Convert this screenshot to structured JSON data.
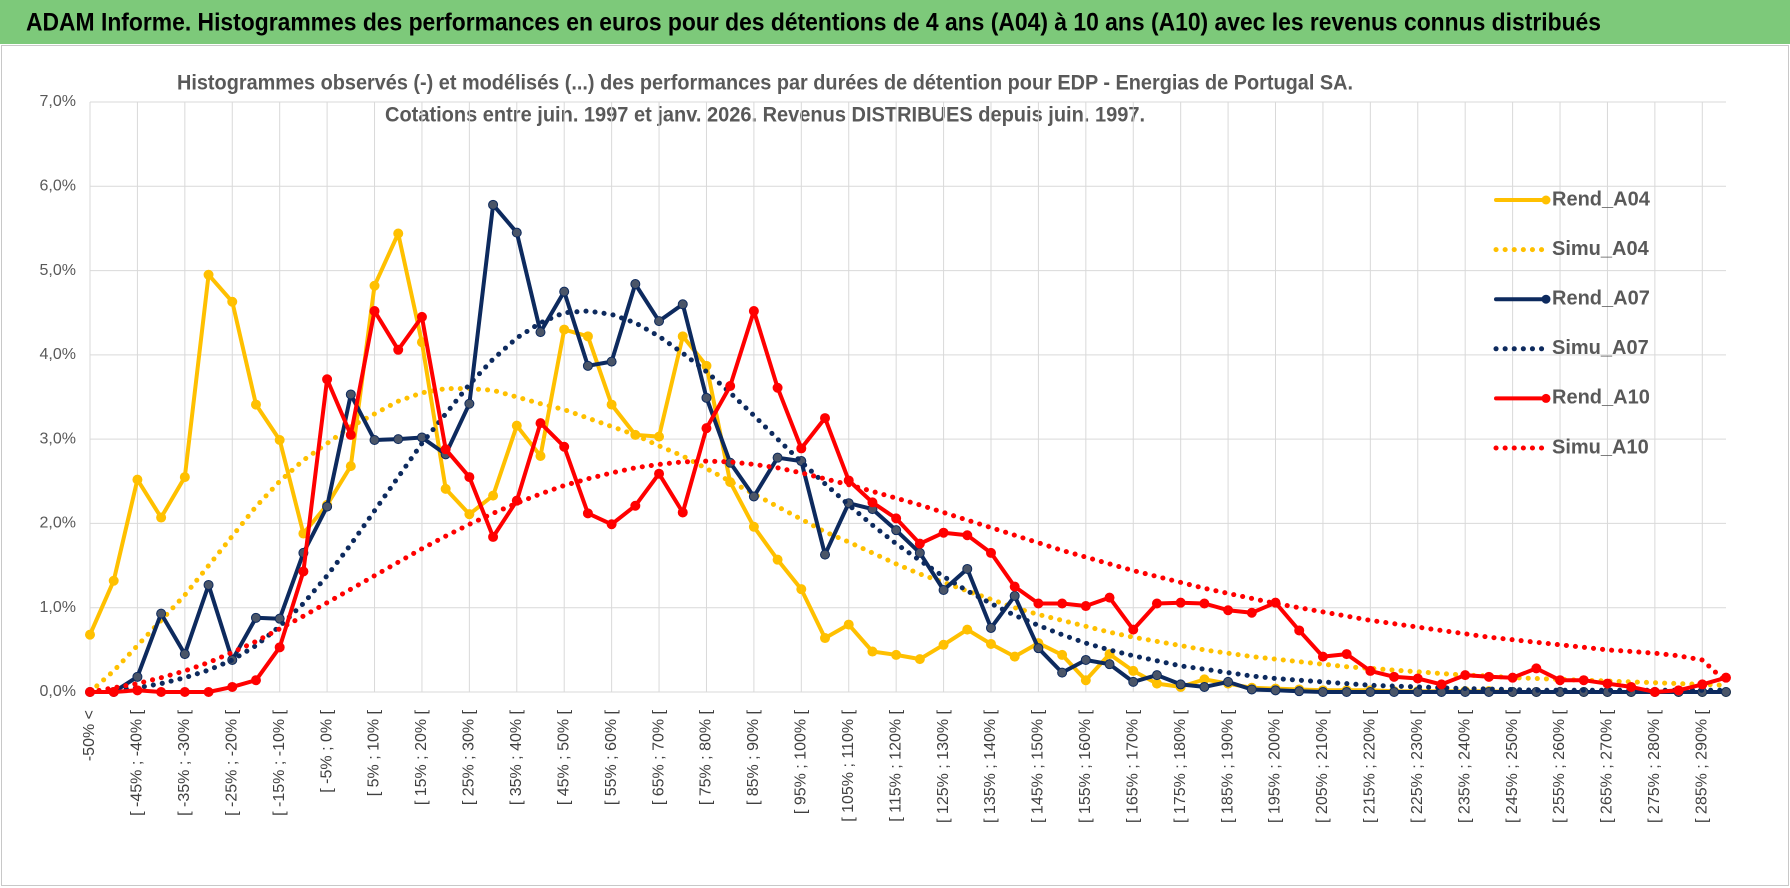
{
  "header": {
    "title": "ADAM Informe. Histogrammes des performances en euros pour des détentions de 4 ans (A04) à 10 ans (A10) avec les revenus connus distribués"
  },
  "chart_data": {
    "type": "line",
    "title": [
      "Histogrammes observés (-) et modélisés (...) des performances par durées de détention pour EDP - Energias de Portugal SA.",
      "Cotations entre juin. 1997 et janv. 2026. Revenus DISTRIBUES depuis juin. 1997."
    ],
    "categories": [
      "-50% <",
      null,
      "[ -45% ; -40% [",
      null,
      "[ -35% ; -30% [",
      null,
      "[ -25% ; -20% [",
      null,
      "[ -15% ; -10% [",
      null,
      "[ -5% ; 0% [",
      null,
      "[ 5% ; 10% [",
      null,
      "[ 15% ; 20% [",
      null,
      "[ 25% ; 30% [",
      null,
      "[ 35% ; 40% [",
      null,
      "[ 45% ; 50% [",
      null,
      "[ 55% ; 60% [",
      null,
      "[ 65% ; 70% [",
      null,
      "[ 75% ; 80% [",
      null,
      "[ 85% ; 90% [",
      null,
      "[ 95% ; 100% [",
      null,
      "[ 105% ; 110% [",
      null,
      "[ 115% ; 120% [",
      null,
      "[ 125% ; 130% [",
      null,
      "[ 135% ; 140% [",
      null,
      "[ 145% ; 150% [",
      null,
      "[ 155% ; 160% [",
      null,
      "[ 165% ; 170% [",
      null,
      "[ 175% ; 180% [",
      null,
      "[ 185% ; 190% [",
      null,
      "[ 195% ; 200% [",
      null,
      "[ 205% ; 210% [",
      null,
      "[ 215% ; 220% [",
      null,
      "[ 225% ; 230% [",
      null,
      "[ 235% ; 240% [",
      null,
      "[ 245% ; 250% [",
      null,
      "[ 255% ; 260% [",
      null,
      "[ 265% ; 270% [",
      null,
      "[ 275% ; 280% [",
      null,
      "[ 285% ; 290% [",
      null
    ],
    "series": [
      {
        "name": "Rend_A04",
        "color": "#ffc000",
        "style": "solid",
        "markers": true,
        "values": [
          0.68,
          1.32,
          2.52,
          2.07,
          2.55,
          4.95,
          4.63,
          3.41,
          2.99,
          1.88,
          2.22,
          2.68,
          4.82,
          5.44,
          4.15,
          2.41,
          2.11,
          2.33,
          3.16,
          2.8,
          4.3,
          4.22,
          3.41,
          3.05,
          3.03,
          4.22,
          3.87,
          2.49,
          1.96,
          1.57,
          1.22,
          0.64,
          0.8,
          0.48,
          0.44,
          0.39,
          0.56,
          0.74,
          0.57,
          0.42,
          0.58,
          0.44,
          0.14,
          0.45,
          0.25,
          0.1,
          0.06,
          0.15,
          0.1,
          0.05,
          0.04,
          0.03,
          0.02,
          0.02,
          0.02,
          0.01,
          0.01,
          0.01,
          0.01,
          0.01,
          0,
          0,
          0,
          0,
          0,
          0,
          0,
          0,
          0,
          0
        ]
      },
      {
        "name": "Simu_A04",
        "color": "#ffc000",
        "style": "dotted",
        "markers": false,
        "values": [
          0,
          0.25,
          0.55,
          0.85,
          1.15,
          1.5,
          1.85,
          2.2,
          2.5,
          2.75,
          2.95,
          3.15,
          3.3,
          3.45,
          3.55,
          3.6,
          3.6,
          3.58,
          3.5,
          3.42,
          3.35,
          3.25,
          3.15,
          3.05,
          2.92,
          2.8,
          2.65,
          2.5,
          2.35,
          2.2,
          2.05,
          1.9,
          1.78,
          1.65,
          1.52,
          1.4,
          1.3,
          1.2,
          1.1,
          1,
          0.92,
          0.85,
          0.78,
          0.71,
          0.65,
          0.6,
          0.55,
          0.5,
          0.46,
          0.42,
          0.39,
          0.36,
          0.33,
          0.3,
          0.28,
          0.26,
          0.24,
          0.22,
          0.2,
          0.19,
          0.17,
          0.16,
          0.15,
          0.14,
          0.13,
          0.12,
          0.11,
          0.1,
          0.09,
          0.08
        ]
      },
      {
        "name": "Rend_A07",
        "color": "#0d2a5e",
        "style": "solid",
        "markers": true,
        "values": [
          0,
          0,
          0.18,
          0.93,
          0.45,
          1.27,
          0.38,
          0.88,
          0.87,
          1.65,
          2.2,
          3.53,
          2.99,
          3,
          3.02,
          2.82,
          3.42,
          5.78,
          5.45,
          4.27,
          4.75,
          3.87,
          3.92,
          4.84,
          4.4,
          4.6,
          3.49,
          2.72,
          2.32,
          2.78,
          2.74,
          1.63,
          2.24,
          2.17,
          1.92,
          1.65,
          1.21,
          1.46,
          0.76,
          1.14,
          0.52,
          0.23,
          0.38,
          0.33,
          0.12,
          0.2,
          0.09,
          0.06,
          0.12,
          0.03,
          0.02,
          0.01,
          0,
          0,
          0,
          0,
          0,
          0,
          0,
          0,
          0,
          0,
          0,
          0,
          0,
          0,
          0,
          0,
          0,
          0
        ]
      },
      {
        "name": "Simu_A07",
        "color": "#0d2a5e",
        "style": "dotted",
        "markers": false,
        "values": [
          0,
          0.02,
          0.05,
          0.1,
          0.17,
          0.26,
          0.38,
          0.55,
          0.78,
          1.05,
          1.38,
          1.75,
          2.15,
          2.55,
          2.95,
          3.3,
          3.65,
          3.95,
          4.2,
          4.38,
          4.5,
          4.52,
          4.48,
          4.38,
          4.22,
          4.02,
          3.8,
          3.55,
          3.28,
          3,
          2.73,
          2.47,
          2.22,
          1.98,
          1.76,
          1.56,
          1.37,
          1.2,
          1.05,
          0.91,
          0.79,
          0.68,
          0.58,
          0.5,
          0.43,
          0.37,
          0.31,
          0.27,
          0.23,
          0.19,
          0.16,
          0.14,
          0.12,
          0.1,
          0.08,
          0.07,
          0.06,
          0.05,
          0.04,
          0.035,
          0.03,
          0.02,
          0.02,
          0.02,
          0.02,
          0.02,
          0.02,
          0.02,
          0.02,
          0.02
        ]
      },
      {
        "name": "Rend_A10",
        "color": "#ff0000",
        "style": "solid",
        "markers": true,
        "values": [
          0,
          0,
          0.02,
          0,
          0,
          0,
          0.06,
          0.14,
          0.53,
          1.43,
          3.71,
          3.05,
          4.52,
          4.06,
          4.45,
          2.88,
          2.55,
          1.84,
          2.27,
          3.19,
          2.91,
          2.12,
          1.99,
          2.21,
          2.59,
          2.13,
          3.13,
          3.63,
          4.52,
          3.61,
          2.89,
          3.25,
          2.51,
          2.25,
          2.06,
          1.76,
          1.89,
          1.86,
          1.65,
          1.25,
          1.05,
          1.05,
          1.02,
          1.12,
          0.74,
          1.05,
          1.06,
          1.05,
          0.97,
          0.94,
          1.06,
          0.73,
          0.42,
          0.45,
          0.25,
          0.18,
          0.16,
          0.09,
          0.2,
          0.18,
          0.17,
          0.28,
          0.14,
          0.14,
          0.1,
          0.06,
          0,
          0.02,
          0.09,
          0.17
        ]
      },
      {
        "name": "Simu_A10",
        "color": "#ff0000",
        "style": "dotted",
        "markers": false,
        "values": [
          0,
          0.05,
          0.1,
          0.17,
          0.25,
          0.35,
          0.47,
          0.6,
          0.75,
          0.9,
          1.06,
          1.22,
          1.38,
          1.54,
          1.7,
          1.85,
          1.99,
          2.12,
          2.24,
          2.35,
          2.45,
          2.53,
          2.6,
          2.66,
          2.7,
          2.73,
          2.74,
          2.73,
          2.7,
          2.66,
          2.6,
          2.53,
          2.46,
          2.38,
          2.3,
          2.22,
          2.13,
          2.04,
          1.95,
          1.86,
          1.77,
          1.68,
          1.6,
          1.52,
          1.44,
          1.37,
          1.3,
          1.23,
          1.17,
          1.11,
          1.05,
          1,
          0.95,
          0.9,
          0.85,
          0.81,
          0.77,
          0.73,
          0.69,
          0.65,
          0.62,
          0.59,
          0.56,
          0.53,
          0.5,
          0.48,
          0.46,
          0.43,
          0.38,
          0.12
        ]
      }
    ],
    "ylim": [
      0,
      7
    ],
    "yticks": [
      {
        "value": 0,
        "label": "0,0%"
      },
      {
        "value": 1,
        "label": "1,0%"
      },
      {
        "value": 2,
        "label": "2,0%"
      },
      {
        "value": 3,
        "label": "3,0%"
      },
      {
        "value": 4,
        "label": "4,0%"
      },
      {
        "value": 5,
        "label": "5,0%"
      },
      {
        "value": 6,
        "label": "6,0%"
      },
      {
        "value": 7,
        "label": "7,0%"
      }
    ],
    "grid": true,
    "legend": "right"
  }
}
